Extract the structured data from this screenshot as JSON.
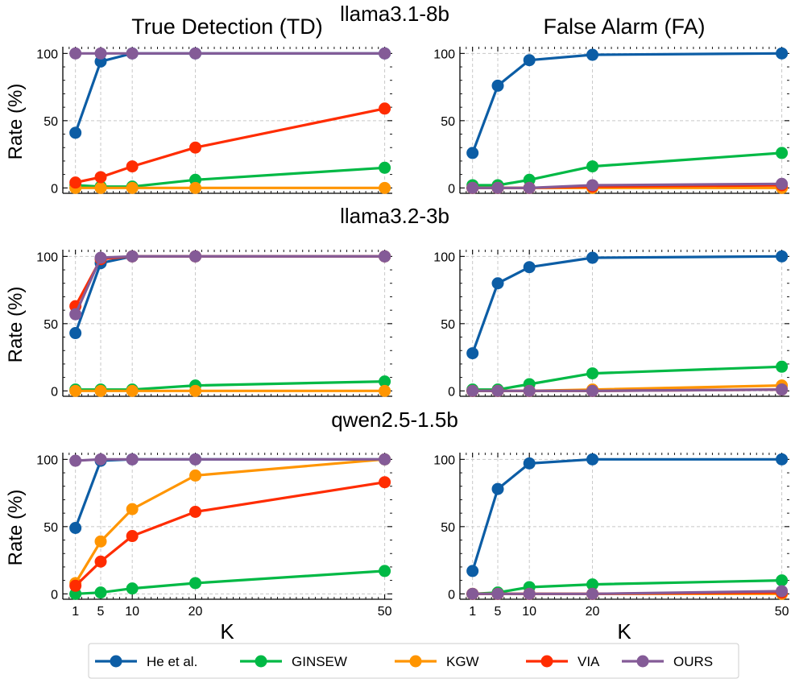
{
  "figure": {
    "column_titles": [
      "True Detection (TD)",
      "False Alarm (FA)"
    ],
    "model_names": [
      "llama3.1-8b",
      "llama3.2-3b",
      "qwen2.5-1.5b"
    ],
    "ylabel": "Rate (%)",
    "xlabel": "K"
  },
  "legend": {
    "position": "bottom-center",
    "entries": [
      "He et al.",
      "GINSEW",
      "KGW",
      "VIA",
      "OURS"
    ]
  },
  "colors": {
    "He et al.": "#0c5da5",
    "GINSEW": "#00b945",
    "KGW": "#ff9500",
    "VIA": "#ff2c00",
    "OURS": "#845b97"
  },
  "chart_data": [
    {
      "type": "line",
      "model": "llama3.1-8b",
      "metric": "True Detection (TD)",
      "x": [
        1,
        5,
        10,
        20,
        50
      ],
      "xticks": [
        1,
        5,
        10,
        20,
        50
      ],
      "yticks": [
        0,
        50,
        100
      ],
      "ylim": [
        -4,
        105
      ],
      "grid": true,
      "series": [
        {
          "name": "He et al.",
          "values": [
            41,
            94,
            100,
            100,
            100
          ]
        },
        {
          "name": "GINSEW",
          "values": [
            2,
            1,
            1,
            6,
            15
          ]
        },
        {
          "name": "KGW",
          "values": [
            0,
            0,
            0,
            0,
            0
          ]
        },
        {
          "name": "VIA",
          "values": [
            4,
            8,
            16,
            30,
            59
          ]
        },
        {
          "name": "OURS",
          "values": [
            100,
            100,
            100,
            100,
            100
          ]
        }
      ]
    },
    {
      "type": "line",
      "model": "llama3.1-8b",
      "metric": "False Alarm (FA)",
      "x": [
        1,
        5,
        10,
        20,
        50
      ],
      "xticks": [
        1,
        5,
        10,
        20,
        50
      ],
      "yticks": [
        0,
        50,
        100
      ],
      "ylim": [
        -4,
        105
      ],
      "grid": true,
      "series": [
        {
          "name": "He et al.",
          "values": [
            26,
            76,
            95,
            99,
            100
          ]
        },
        {
          "name": "GINSEW",
          "values": [
            2,
            2,
            6,
            16,
            26
          ]
        },
        {
          "name": "KGW",
          "values": [
            0,
            0,
            0,
            0,
            0
          ]
        },
        {
          "name": "VIA",
          "values": [
            0,
            0,
            0,
            1,
            2
          ]
        },
        {
          "name": "OURS",
          "values": [
            0,
            0,
            0,
            2,
            3
          ]
        }
      ]
    },
    {
      "type": "line",
      "model": "llama3.2-3b",
      "metric": "True Detection (TD)",
      "x": [
        1,
        5,
        10,
        20,
        50
      ],
      "xticks": [
        1,
        5,
        10,
        20,
        50
      ],
      "yticks": [
        0,
        50,
        100
      ],
      "ylim": [
        -4,
        105
      ],
      "grid": true,
      "series": [
        {
          "name": "He et al.",
          "values": [
            43,
            95,
            100,
            100,
            100
          ]
        },
        {
          "name": "GINSEW",
          "values": [
            1,
            1,
            1,
            4,
            7
          ]
        },
        {
          "name": "KGW",
          "values": [
            0,
            0,
            0,
            0,
            0
          ]
        },
        {
          "name": "VIA",
          "values": [
            63,
            98,
            100,
            100,
            100
          ]
        },
        {
          "name": "OURS",
          "values": [
            57,
            99,
            100,
            100,
            100
          ]
        }
      ]
    },
    {
      "type": "line",
      "model": "llama3.2-3b",
      "metric": "False Alarm (FA)",
      "x": [
        1,
        5,
        10,
        20,
        50
      ],
      "xticks": [
        1,
        5,
        10,
        20,
        50
      ],
      "yticks": [
        0,
        50,
        100
      ],
      "ylim": [
        -4,
        105
      ],
      "grid": true,
      "series": [
        {
          "name": "He et al.",
          "values": [
            28,
            80,
            92,
            99,
            100
          ]
        },
        {
          "name": "GINSEW",
          "values": [
            1,
            1,
            5,
            13,
            18
          ]
        },
        {
          "name": "KGW",
          "values": [
            0,
            0,
            0,
            1,
            4
          ]
        },
        {
          "name": "VIA",
          "values": [
            0,
            0,
            0,
            0,
            1
          ]
        },
        {
          "name": "OURS",
          "values": [
            0,
            0,
            0,
            0,
            1
          ]
        }
      ]
    },
    {
      "type": "line",
      "model": "qwen2.5-1.5b",
      "metric": "True Detection (TD)",
      "x": [
        1,
        5,
        10,
        20,
        50
      ],
      "xticks": [
        1,
        5,
        10,
        20,
        50
      ],
      "yticks": [
        0,
        50,
        100
      ],
      "ylim": [
        -4,
        105
      ],
      "grid": true,
      "series": [
        {
          "name": "He et al.",
          "values": [
            49,
            99,
            100,
            100,
            100
          ]
        },
        {
          "name": "GINSEW",
          "values": [
            0,
            1,
            4,
            8,
            17
          ]
        },
        {
          "name": "KGW",
          "values": [
            8,
            39,
            63,
            88,
            100
          ]
        },
        {
          "name": "VIA",
          "values": [
            6,
            24,
            43,
            61,
            83
          ]
        },
        {
          "name": "OURS",
          "values": [
            99,
            100,
            100,
            100,
            100
          ]
        }
      ]
    },
    {
      "type": "line",
      "model": "qwen2.5-1.5b",
      "metric": "False Alarm (FA)",
      "x": [
        1,
        5,
        10,
        20,
        50
      ],
      "xticks": [
        1,
        5,
        10,
        20,
        50
      ],
      "yticks": [
        0,
        50,
        100
      ],
      "ylim": [
        -4,
        105
      ],
      "grid": true,
      "series": [
        {
          "name": "He et al.",
          "values": [
            17,
            78,
            97,
            100,
            100
          ]
        },
        {
          "name": "GINSEW",
          "values": [
            0,
            1,
            5,
            7,
            10
          ]
        },
        {
          "name": "KGW",
          "values": [
            0,
            0,
            0,
            0,
            0
          ]
        },
        {
          "name": "VIA",
          "values": [
            0,
            0,
            0,
            0,
            1
          ]
        },
        {
          "name": "OURS",
          "values": [
            0,
            0,
            0,
            0,
            2
          ]
        }
      ]
    }
  ]
}
